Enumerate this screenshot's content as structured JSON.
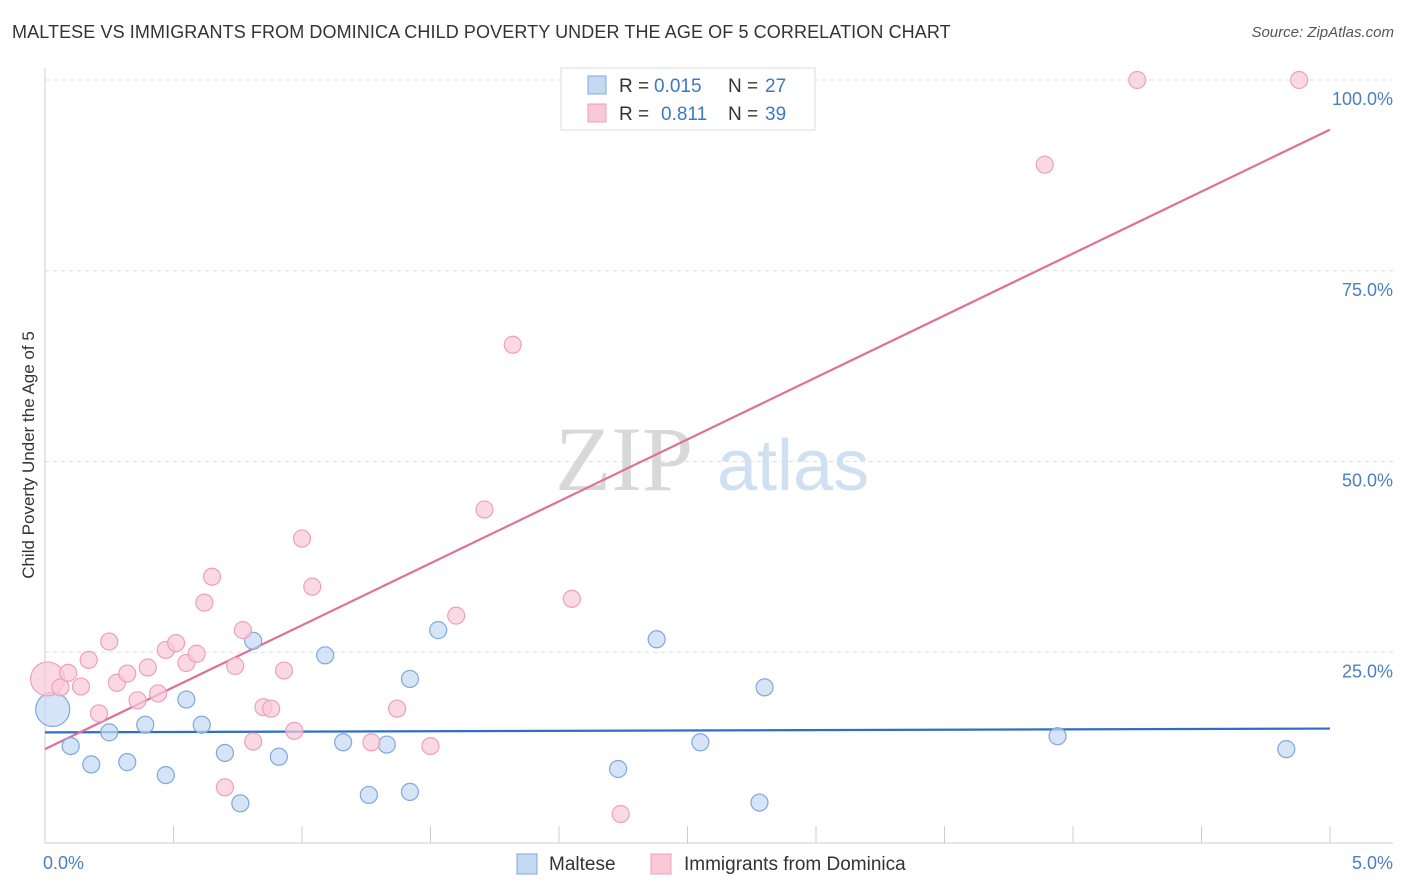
{
  "title": "MALTESE VS IMMIGRANTS FROM DOMINICA CHILD POVERTY UNDER THE AGE OF 5 CORRELATION CHART",
  "source": "Source: ZipAtlas.com",
  "watermark": {
    "zip": "ZIP",
    "atlas": "atlas"
  },
  "colors": {
    "blue_fill": "#c5d9f3",
    "blue_stroke": "#7fa8dc",
    "blue_line": "#2e6fc4",
    "pink_fill": "#f9c9d8",
    "pink_stroke": "#eea0b8",
    "pink_line": "#e07099",
    "grid": "#dddddd",
    "axis_text": "#4a7fc1"
  },
  "chart_data": {
    "type": "scatter",
    "xlabel": "",
    "ylabel": "Child Poverty Under the Age of 5",
    "xlim": [
      0,
      5
    ],
    "ylim": [
      0,
      100
    ],
    "x_tick_labels": [
      "0.0%",
      "5.0%"
    ],
    "y_ticks": [
      25,
      50,
      75,
      100
    ],
    "y_tick_labels": [
      "25.0%",
      "50.0%",
      "75.0%",
      "100.0%"
    ],
    "legend": [
      {
        "r_label": "R =",
        "r_value": "0.015",
        "n_label": "N =",
        "n_value": "27"
      },
      {
        "r_label": "R =",
        "r_value": "0.811",
        "n_label": "N =",
        "n_value": "39"
      }
    ],
    "series": [
      {
        "name": "Maltese",
        "trend": {
          "x": [
            0,
            5
          ],
          "y": [
            14.5,
            15.0
          ]
        },
        "points": [
          {
            "x": 0.03,
            "y": 17.5,
            "big": true
          },
          {
            "x": 0.1,
            "y": 12.7
          },
          {
            "x": 0.18,
            "y": 10.3
          },
          {
            "x": 0.25,
            "y": 14.5
          },
          {
            "x": 0.32,
            "y": 10.6
          },
          {
            "x": 0.39,
            "y": 15.5
          },
          {
            "x": 0.47,
            "y": 8.9
          },
          {
            "x": 0.55,
            "y": 18.8
          },
          {
            "x": 0.61,
            "y": 15.5
          },
          {
            "x": 0.7,
            "y": 11.8
          },
          {
            "x": 0.76,
            "y": 5.2
          },
          {
            "x": 0.81,
            "y": 26.5
          },
          {
            "x": 0.91,
            "y": 11.3
          },
          {
            "x": 1.09,
            "y": 24.6
          },
          {
            "x": 1.16,
            "y": 13.2
          },
          {
            "x": 1.26,
            "y": 6.3
          },
          {
            "x": 1.33,
            "y": 12.9
          },
          {
            "x": 1.42,
            "y": 21.5
          },
          {
            "x": 1.42,
            "y": 6.7
          },
          {
            "x": 1.53,
            "y": 27.9
          },
          {
            "x": 2.23,
            "y": 9.7
          },
          {
            "x": 2.38,
            "y": 26.7
          },
          {
            "x": 2.55,
            "y": 13.2
          },
          {
            "x": 2.78,
            "y": 5.3
          },
          {
            "x": 2.8,
            "y": 20.4
          },
          {
            "x": 3.94,
            "y": 14.0
          },
          {
            "x": 4.83,
            "y": 12.3
          }
        ]
      },
      {
        "name": "Immigrants from Dominica",
        "trend": {
          "x": [
            0,
            5
          ],
          "y": [
            12.3,
            93.5
          ]
        },
        "points": [
          {
            "x": 0.01,
            "y": 21.5,
            "big": true
          },
          {
            "x": 0.06,
            "y": 20.4
          },
          {
            "x": 0.09,
            "y": 22.3
          },
          {
            "x": 0.14,
            "y": 20.5
          },
          {
            "x": 0.17,
            "y": 24.0
          },
          {
            "x": 0.21,
            "y": 17.0
          },
          {
            "x": 0.25,
            "y": 26.4
          },
          {
            "x": 0.28,
            "y": 21.0
          },
          {
            "x": 0.32,
            "y": 22.2
          },
          {
            "x": 0.36,
            "y": 18.7
          },
          {
            "x": 0.4,
            "y": 23.0
          },
          {
            "x": 0.44,
            "y": 19.6
          },
          {
            "x": 0.47,
            "y": 25.3
          },
          {
            "x": 0.51,
            "y": 26.2
          },
          {
            "x": 0.55,
            "y": 23.6
          },
          {
            "x": 0.59,
            "y": 24.8
          },
          {
            "x": 0.62,
            "y": 31.5
          },
          {
            "x": 0.65,
            "y": 34.9
          },
          {
            "x": 0.7,
            "y": 7.3
          },
          {
            "x": 0.74,
            "y": 23.2
          },
          {
            "x": 0.77,
            "y": 27.9
          },
          {
            "x": 0.81,
            "y": 13.3
          },
          {
            "x": 0.85,
            "y": 17.8
          },
          {
            "x": 0.88,
            "y": 17.6
          },
          {
            "x": 0.93,
            "y": 22.6
          },
          {
            "x": 0.97,
            "y": 14.7
          },
          {
            "x": 1.0,
            "y": 39.9
          },
          {
            "x": 1.04,
            "y": 33.6
          },
          {
            "x": 1.27,
            "y": 13.2
          },
          {
            "x": 1.37,
            "y": 17.6
          },
          {
            "x": 1.5,
            "y": 12.7
          },
          {
            "x": 1.6,
            "y": 29.8
          },
          {
            "x": 1.71,
            "y": 43.7
          },
          {
            "x": 1.82,
            "y": 65.3
          },
          {
            "x": 2.05,
            "y": 32.0
          },
          {
            "x": 2.24,
            "y": 3.8
          },
          {
            "x": 3.89,
            "y": 88.9
          },
          {
            "x": 4.25,
            "y": 100.0
          },
          {
            "x": 4.88,
            "y": 100.0
          }
        ]
      }
    ]
  }
}
